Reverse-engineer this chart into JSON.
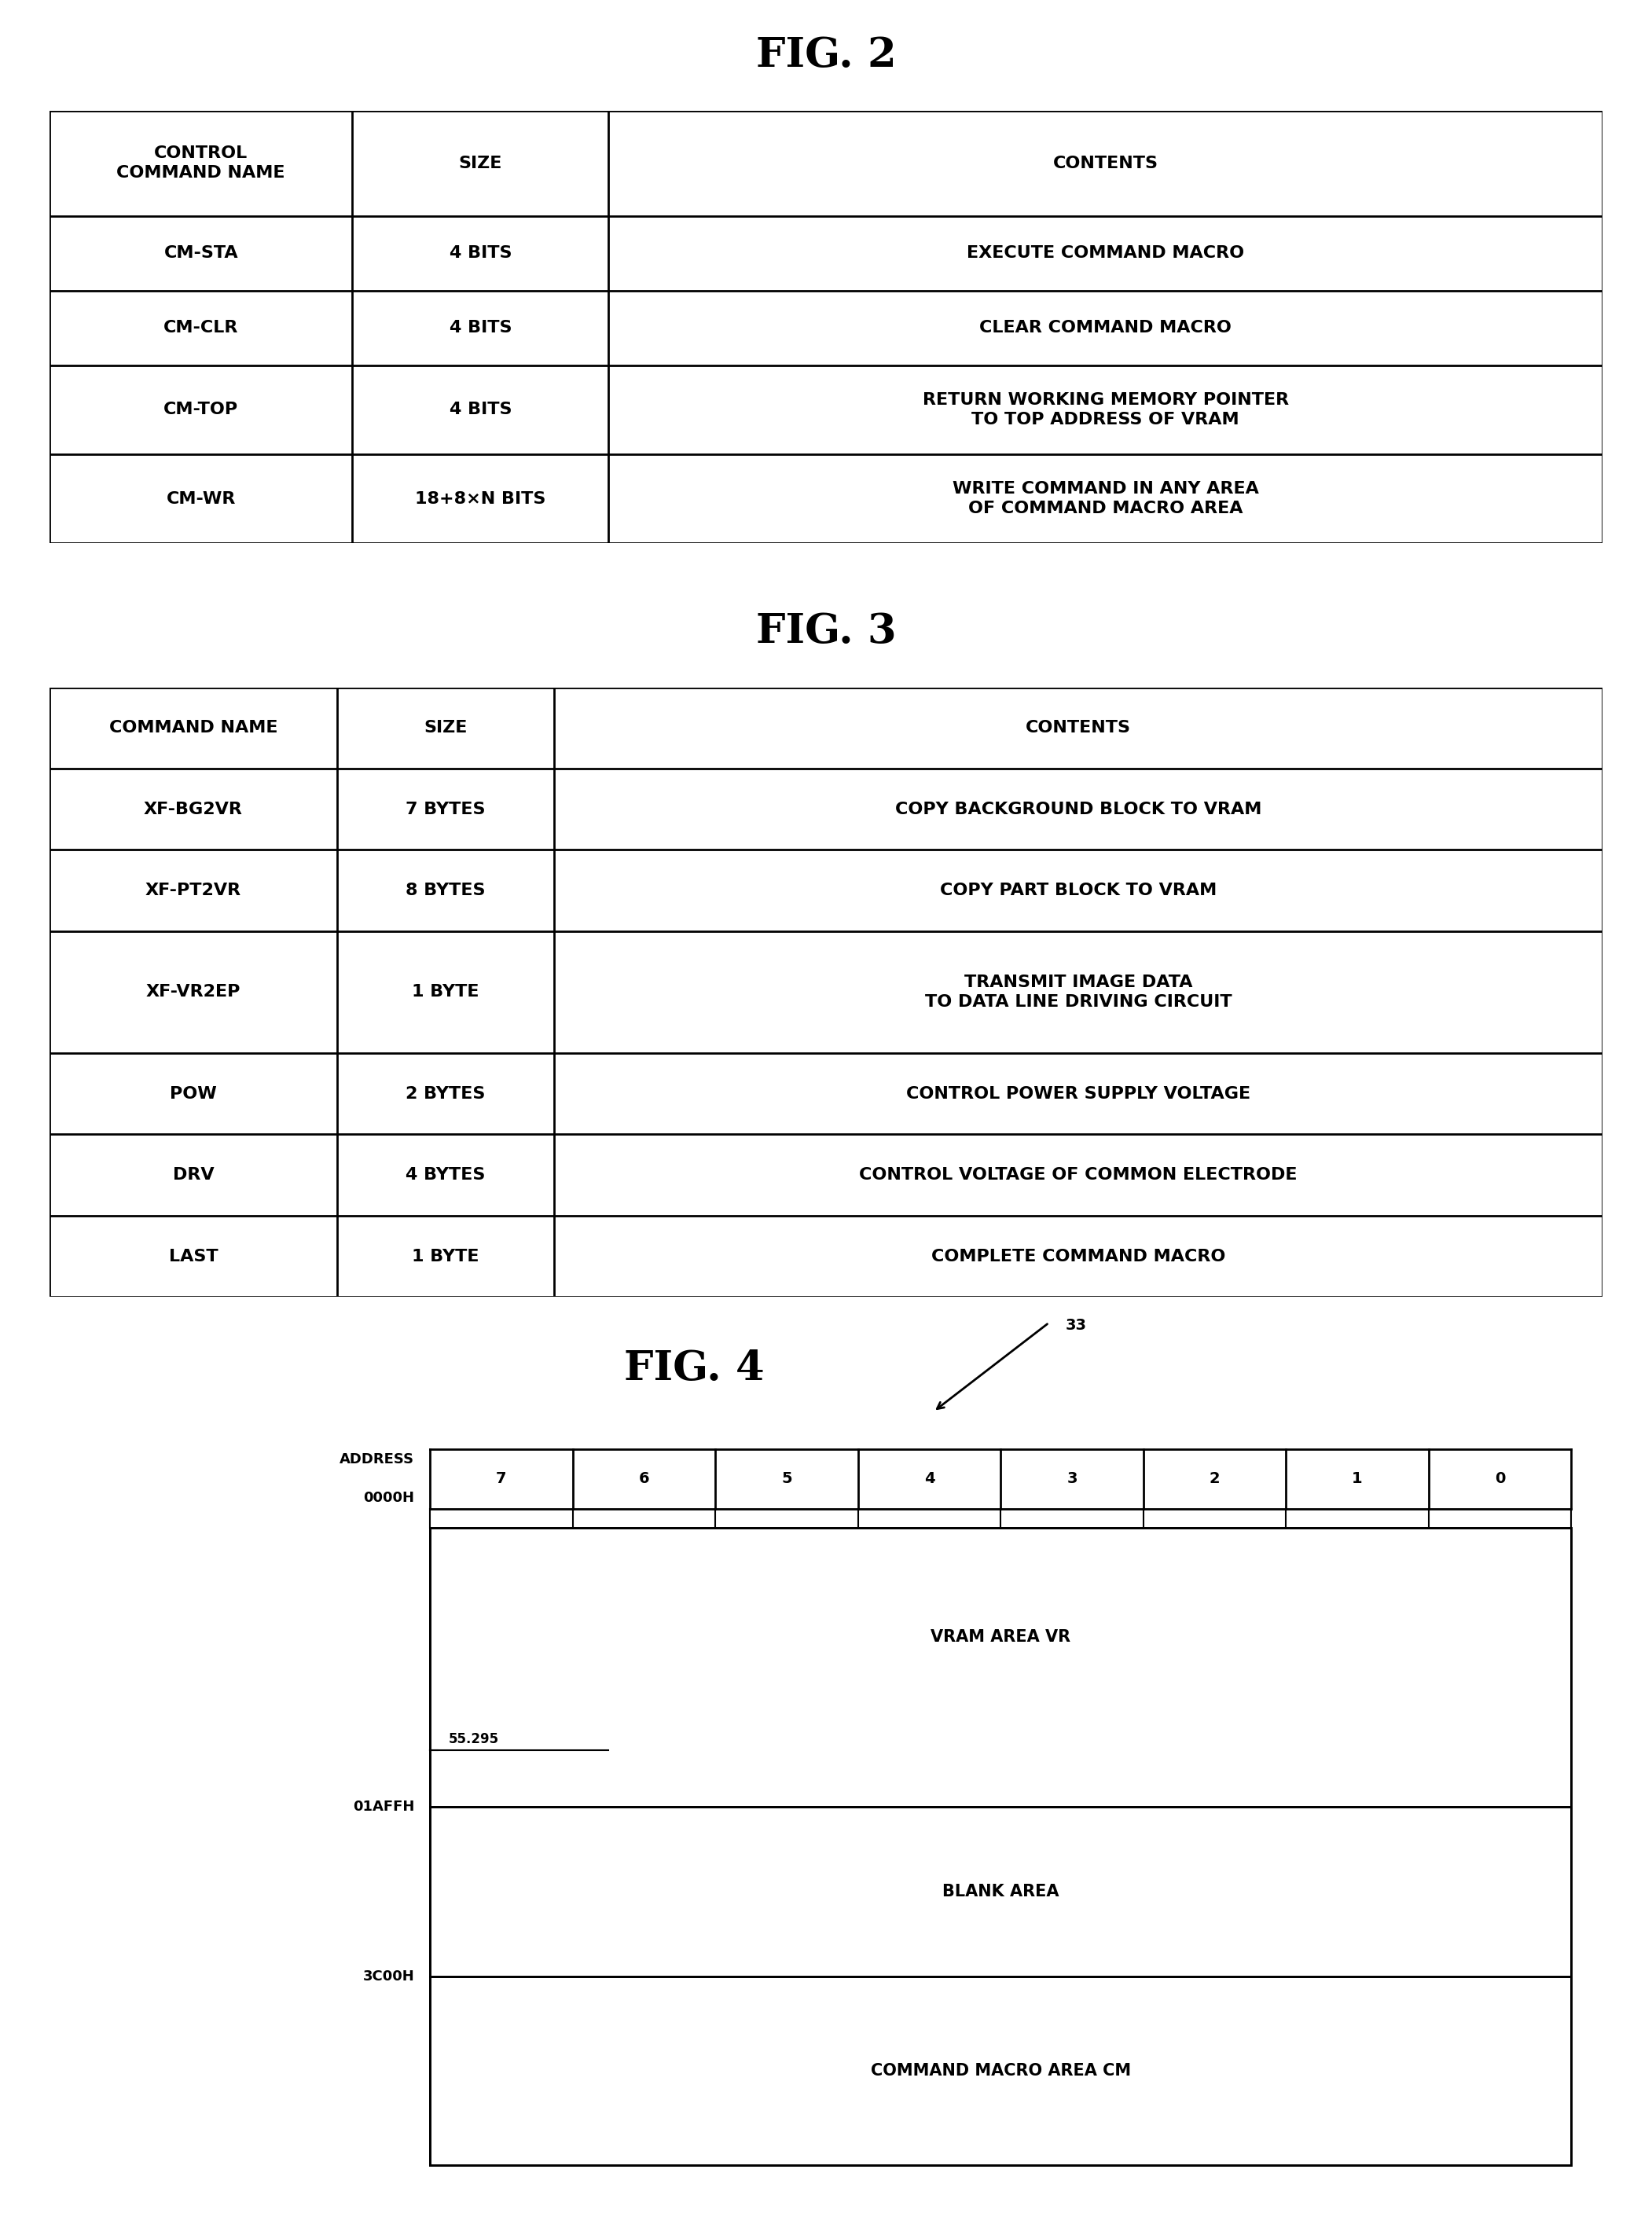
{
  "fig2_title": "FIG. 2",
  "fig2_headers": [
    "CONTROL\nCOMMAND NAME",
    "SIZE",
    "CONTENTS"
  ],
  "fig2_rows": [
    [
      "CM-STA",
      "4 BITS",
      "EXECUTE COMMAND MACRO"
    ],
    [
      "CM-CLR",
      "4 BITS",
      "CLEAR COMMAND MACRO"
    ],
    [
      "CM-TOP",
      "4 BITS",
      "RETURN WORKING MEMORY POINTER\nTO TOP ADDRESS OF VRAM"
    ],
    [
      "CM-WR",
      "18+8×N BITS",
      "WRITE COMMAND IN ANY AREA\nOF COMMAND MACRO AREA"
    ]
  ],
  "fig3_title": "FIG. 3",
  "fig3_headers": [
    "COMMAND NAME",
    "SIZE",
    "CONTENTS"
  ],
  "fig3_rows": [
    [
      "XF-BG2VR",
      "7 BYTES",
      "COPY BACKGROUND BLOCK TO VRAM"
    ],
    [
      "XF-PT2VR",
      "8 BYTES",
      "COPY PART BLOCK TO VRAM"
    ],
    [
      "XF-VR2EP",
      "1 BYTE",
      "TRANSMIT IMAGE DATA\nTO DATA LINE DRIVING CIRCUIT"
    ],
    [
      "POW",
      "2 BYTES",
      "CONTROL POWER SUPPLY VOLTAGE"
    ],
    [
      "DRV",
      "4 BYTES",
      "CONTROL VOLTAGE OF COMMON ELECTRODE"
    ],
    [
      "LAST",
      "1 BYTE",
      "COMPLETE COMMAND MACRO"
    ]
  ],
  "fig4_title": "FIG. 4",
  "fig4_label": "33",
  "fig4_bit_labels": [
    "7",
    "6",
    "5",
    "4",
    "3",
    "2",
    "1",
    "0"
  ],
  "fig4_area1": "VRAM AREA VR",
  "fig4_area2": "BLANK AREA",
  "fig4_area3": "COMMAND MACRO AREA CM",
  "fig4_inner_label": "55.295",
  "lw": 2.0,
  "title_fontsize": 38,
  "header_fontsize": 16,
  "cell_fontsize": 16,
  "fig4_fontsize": 15,
  "fig4_addr_fontsize": 13,
  "fig4_bit_fontsize": 14
}
